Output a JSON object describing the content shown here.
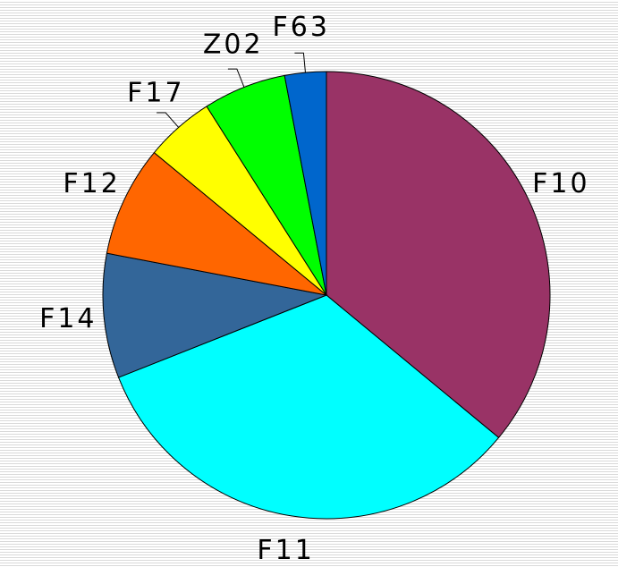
{
  "chart_data": {
    "type": "pie",
    "categories": [
      "F10",
      "F11",
      "F14",
      "F12",
      "F17",
      "Z02",
      "F63"
    ],
    "values": [
      36,
      33,
      9,
      8,
      5,
      6,
      3
    ],
    "colors": [
      "#993366",
      "#00ffff",
      "#336699",
      "#ff6600",
      "#ffff00",
      "#00ff00",
      "#0066cc"
    ]
  }
}
